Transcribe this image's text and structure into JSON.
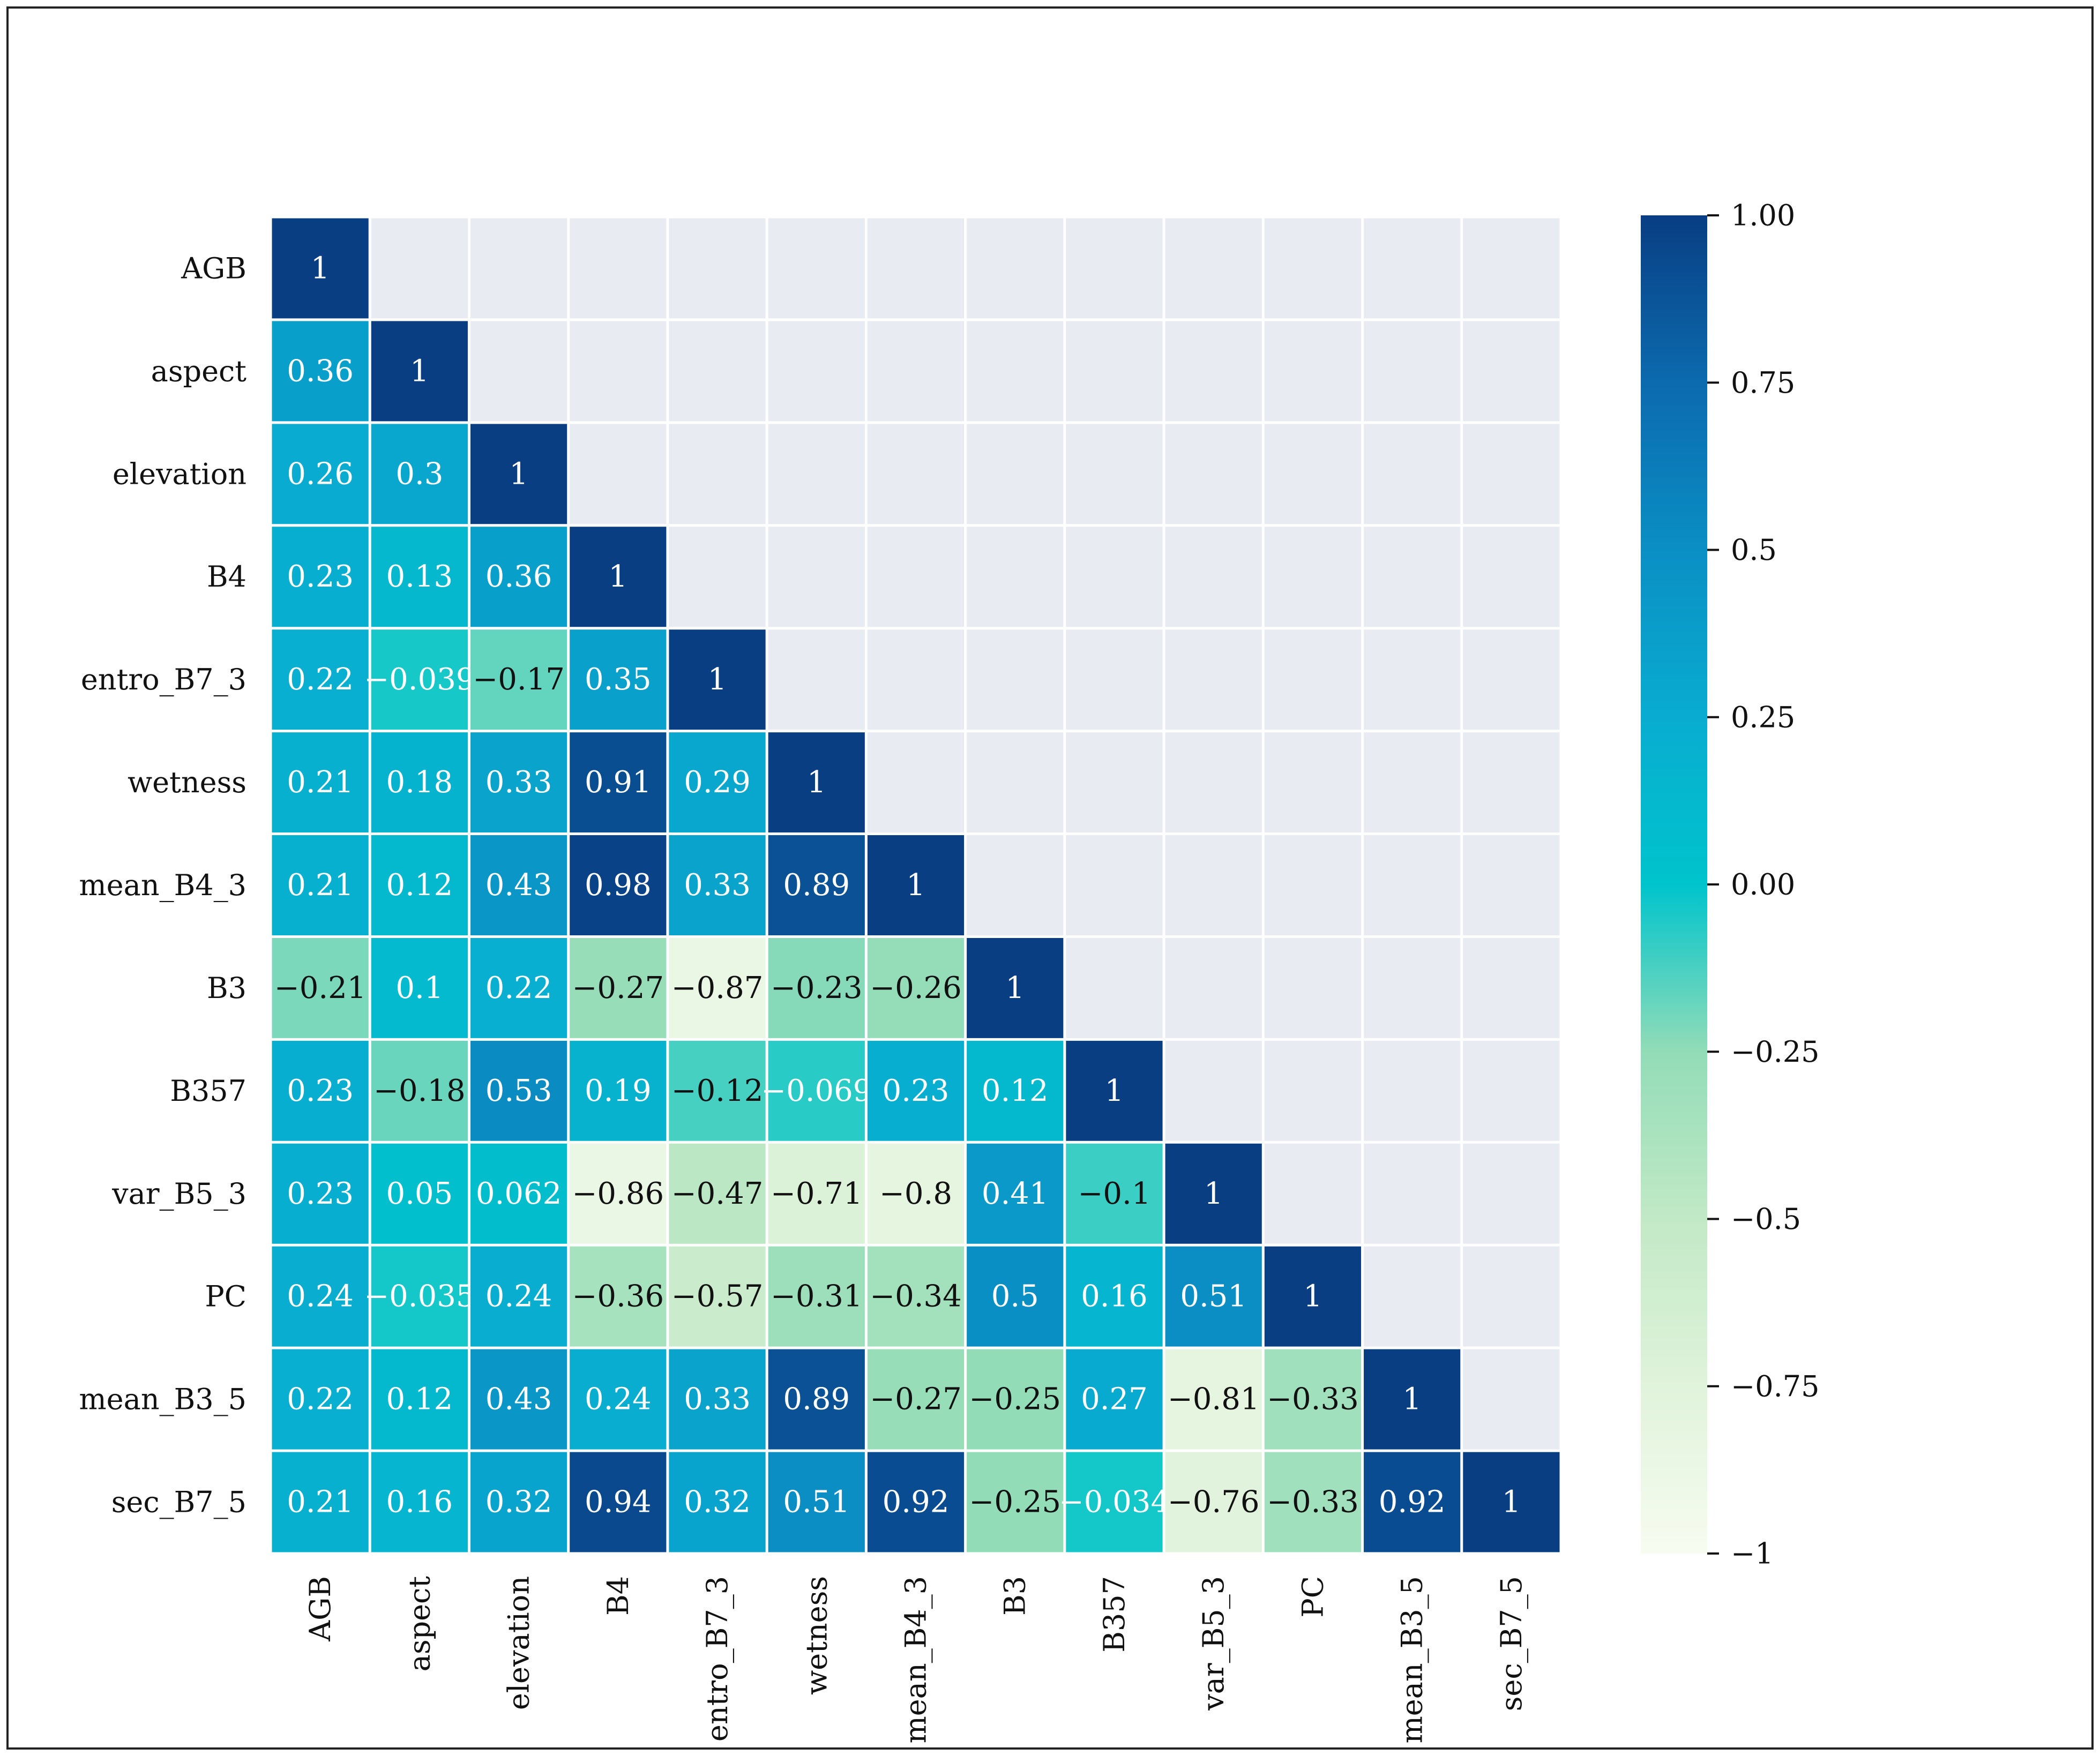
{
  "chart_data": {
    "type": "heatmap",
    "title": "",
    "variables": [
      "AGB",
      "aspect",
      "elevation",
      "B4",
      "entro_B7_3",
      "wetness",
      "mean_B4_3",
      "B3",
      "B357",
      "var_B5_3",
      "PC",
      "mean_B3_5",
      "sec_B7_5"
    ],
    "matrix_lower_triangle": [
      [
        "1"
      ],
      [
        "0.36",
        "1"
      ],
      [
        "0.26",
        "0.3",
        "1"
      ],
      [
        "0.23",
        "0.13",
        "0.36",
        "1"
      ],
      [
        "0.22",
        "−0.039",
        "−0.17",
        "0.35",
        "1"
      ],
      [
        "0.21",
        "0.18",
        "0.33",
        "0.91",
        "0.29",
        "1"
      ],
      [
        "0.21",
        "0.12",
        "0.43",
        "0.98",
        "0.33",
        "0.89",
        "1"
      ],
      [
        "−0.21",
        "0.1",
        "0.22",
        "−0.27",
        "−0.87",
        "−0.23",
        "−0.26",
        "1"
      ],
      [
        "0.23",
        "−0.18",
        "0.53",
        "0.19",
        "−0.12",
        "−0.069",
        "0.23",
        "0.12",
        "1"
      ],
      [
        "0.23",
        "0.05",
        "0.062",
        "−0.86",
        "−0.47",
        "−0.71",
        "−0.8",
        "0.41",
        "−0.1",
        "1"
      ],
      [
        "0.24",
        "−0.035",
        "0.24",
        "−0.36",
        "−0.57",
        "−0.31",
        "−0.34",
        "0.5",
        "0.16",
        "0.51",
        "1"
      ],
      [
        "0.22",
        "0.12",
        "0.43",
        "0.24",
        "0.33",
        "0.89",
        "−0.27",
        "−0.25",
        "0.27",
        "−0.81",
        "−0.33",
        "1"
      ],
      [
        "0.21",
        "0.16",
        "0.32",
        "0.94",
        "0.32",
        "0.51",
        "0.92",
        "−0.25",
        "−0.034",
        "−0.76",
        "−0.33",
        "0.92",
        "1"
      ]
    ],
    "colorbar": {
      "range": [
        -1,
        1
      ],
      "ticks": [
        1,
        0.75,
        0.5,
        0.25,
        0,
        -0.25,
        -0.5,
        -0.75,
        -1
      ],
      "tick_labels": [
        "1.00",
        "0.75",
        "0.5",
        "0.25",
        "0.00",
        "−0.25",
        "−0.5",
        "−0.75",
        "−1"
      ],
      "colormap": [
        {
          "v": -1.0,
          "color": "#f7fcf0"
        },
        {
          "v": -0.75,
          "color": "#e0f3db"
        },
        {
          "v": -0.5,
          "color": "#c2e9c6"
        },
        {
          "v": -0.25,
          "color": "#92dcb7"
        },
        {
          "v": 0.0,
          "color": "#00c4cc"
        },
        {
          "v": 0.25,
          "color": "#09acd0"
        },
        {
          "v": 0.5,
          "color": "#0a8fc4"
        },
        {
          "v": 0.75,
          "color": "#0c6aae"
        },
        {
          "v": 1.0,
          "color": "#093e83"
        }
      ]
    },
    "xlabel": "",
    "ylabel": ""
  }
}
